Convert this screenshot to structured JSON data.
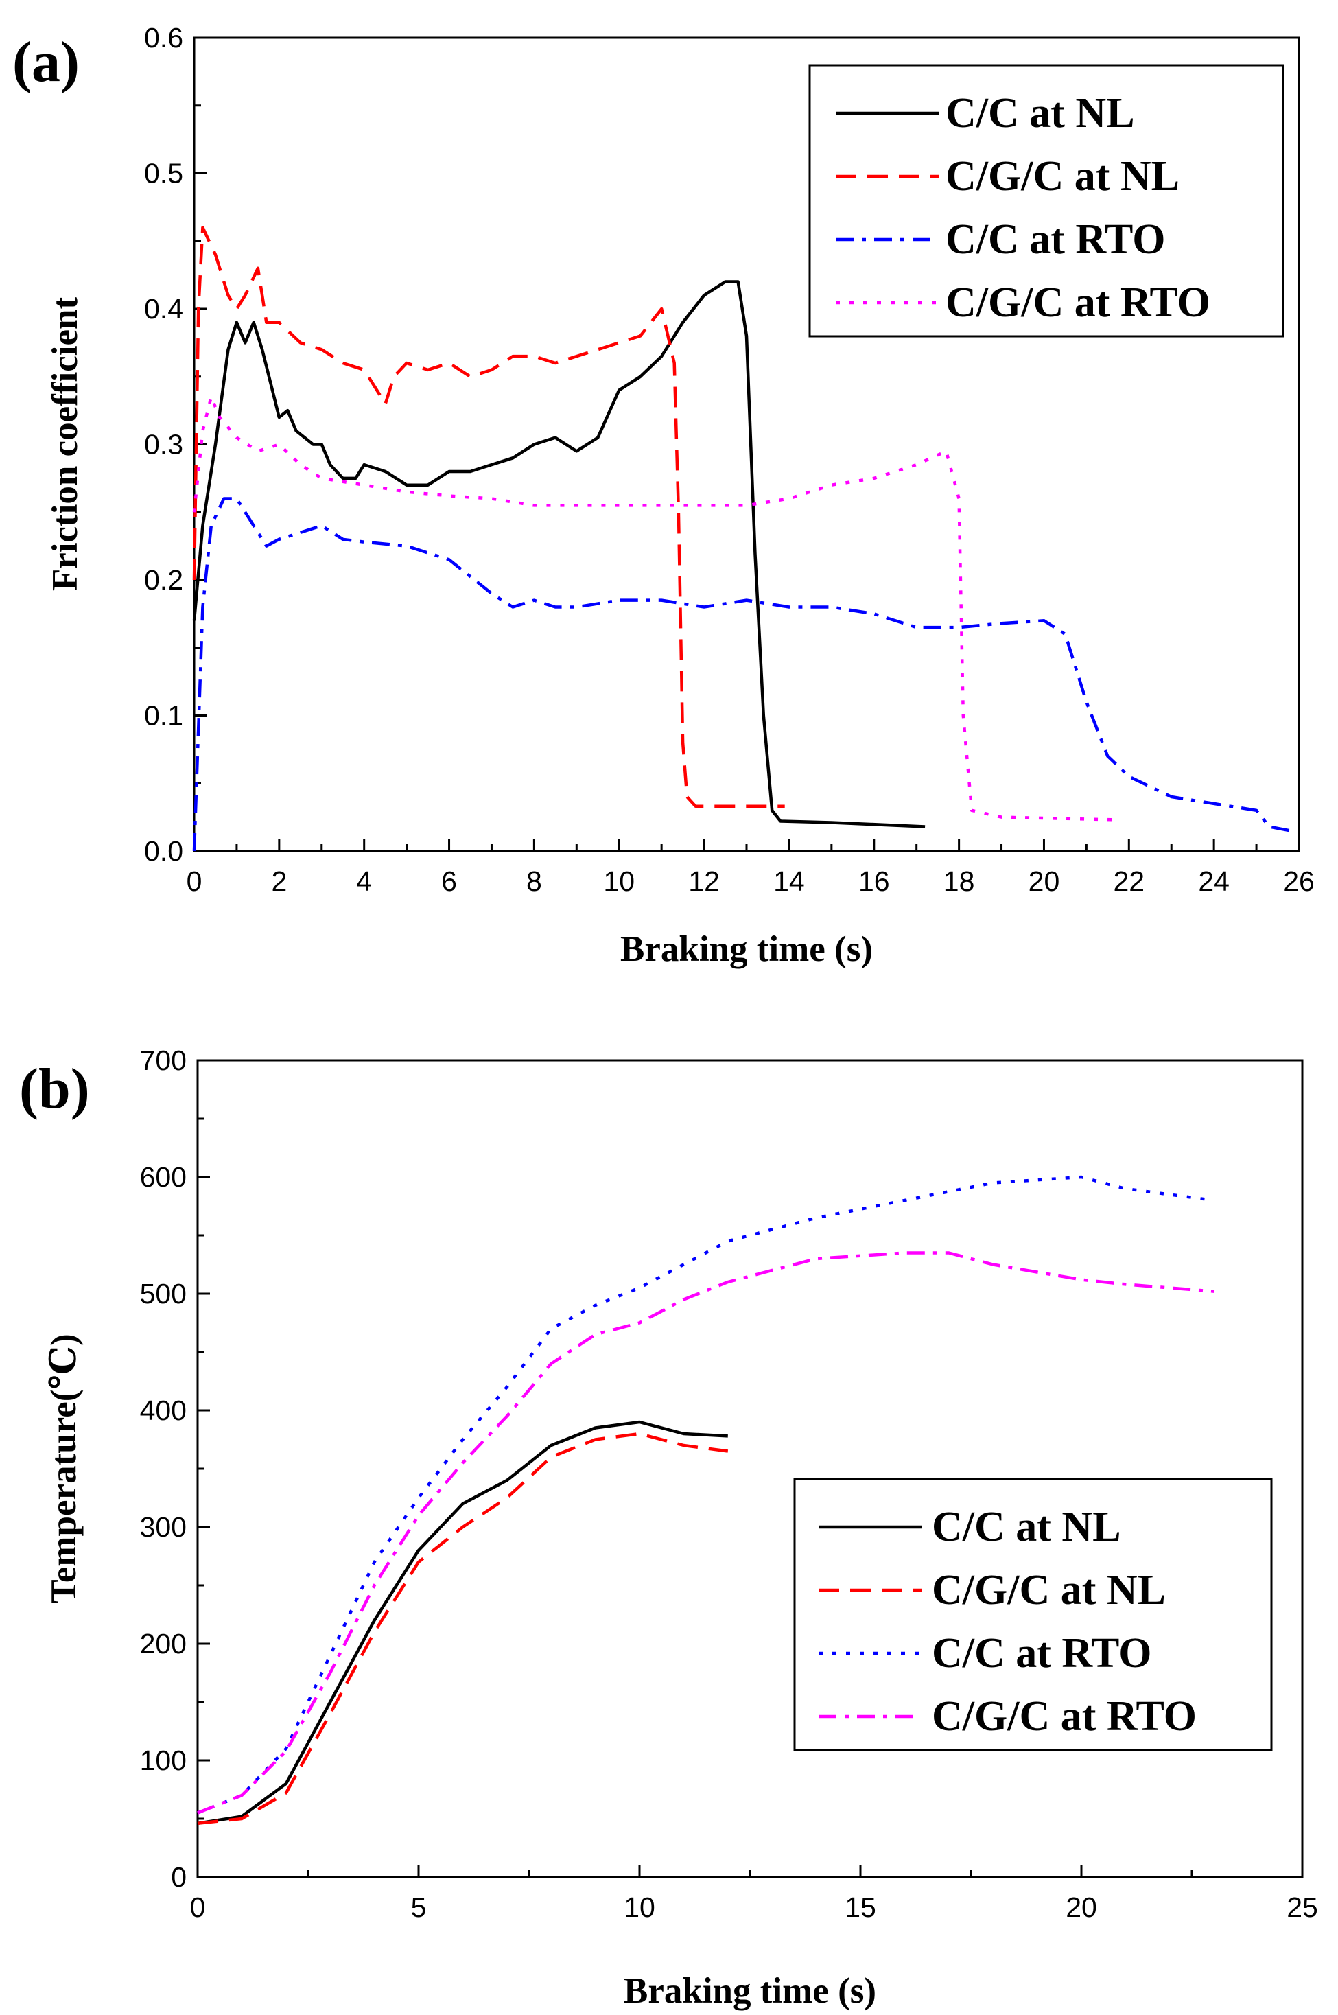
{
  "chart_data": [
    {
      "panel": "(a)",
      "type": "line",
      "title": "",
      "xlabel": "Braking time (s)",
      "ylabel": "Friction coefficient",
      "xlim": [
        0,
        26
      ],
      "ylim": [
        0,
        0.6
      ],
      "xticks": [
        0,
        2,
        4,
        6,
        8,
        10,
        12,
        14,
        16,
        18,
        20,
        22,
        24,
        26
      ],
      "yticks": [
        0.0,
        0.1,
        0.2,
        0.3,
        0.4,
        0.5,
        0.6
      ],
      "xtick_labels": [
        "0",
        "2",
        "4",
        "6",
        "8",
        "10",
        "12",
        "14",
        "16",
        "18",
        "20",
        "22",
        "24",
        "26"
      ],
      "ytick_labels": [
        "0.0",
        "0.1",
        "0.2",
        "0.3",
        "0.4",
        "0.5",
        "0.6"
      ],
      "legend_position": "top-right",
      "series": [
        {
          "name": "C/C at NL",
          "color": "#000000",
          "style": "solid",
          "points": [
            [
              0,
              0.17
            ],
            [
              0.2,
              0.24
            ],
            [
              0.5,
              0.3
            ],
            [
              0.8,
              0.37
            ],
            [
              1,
              0.39
            ],
            [
              1.2,
              0.375
            ],
            [
              1.4,
              0.39
            ],
            [
              1.6,
              0.37
            ],
            [
              1.8,
              0.345
            ],
            [
              2,
              0.32
            ],
            [
              2.2,
              0.325
            ],
            [
              2.4,
              0.31
            ],
            [
              2.6,
              0.305
            ],
            [
              2.8,
              0.3
            ],
            [
              3,
              0.3
            ],
            [
              3.2,
              0.285
            ],
            [
              3.5,
              0.275
            ],
            [
              3.8,
              0.275
            ],
            [
              4,
              0.285
            ],
            [
              4.5,
              0.28
            ],
            [
              5,
              0.27
            ],
            [
              5.5,
              0.27
            ],
            [
              6,
              0.28
            ],
            [
              6.5,
              0.28
            ],
            [
              7,
              0.285
            ],
            [
              7.5,
              0.29
            ],
            [
              8,
              0.3
            ],
            [
              8.5,
              0.305
            ],
            [
              9,
              0.295
            ],
            [
              9.5,
              0.305
            ],
            [
              10,
              0.34
            ],
            [
              10.5,
              0.35
            ],
            [
              11,
              0.365
            ],
            [
              11.5,
              0.39
            ],
            [
              12,
              0.41
            ],
            [
              12.5,
              0.42
            ],
            [
              12.8,
              0.42
            ],
            [
              13,
              0.38
            ],
            [
              13.2,
              0.22
            ],
            [
              13.4,
              0.1
            ],
            [
              13.6,
              0.03
            ],
            [
              13.8,
              0.022
            ],
            [
              15,
              0.021
            ],
            [
              17.2,
              0.018
            ]
          ]
        },
        {
          "name": "C/G/C at NL",
          "color": "#ff0000",
          "style": "dashed",
          "points": [
            [
              0,
              0.2
            ],
            [
              0.1,
              0.4
            ],
            [
              0.2,
              0.46
            ],
            [
              0.5,
              0.44
            ],
            [
              0.8,
              0.41
            ],
            [
              1,
              0.4
            ],
            [
              1.2,
              0.41
            ],
            [
              1.5,
              0.43
            ],
            [
              1.7,
              0.39
            ],
            [
              2,
              0.39
            ],
            [
              2.5,
              0.375
            ],
            [
              3,
              0.37
            ],
            [
              3.5,
              0.36
            ],
            [
              4,
              0.355
            ],
            [
              4.5,
              0.33
            ],
            [
              4.7,
              0.35
            ],
            [
              5,
              0.36
            ],
            [
              5.5,
              0.355
            ],
            [
              6,
              0.36
            ],
            [
              6.5,
              0.35
            ],
            [
              7,
              0.355
            ],
            [
              7.5,
              0.365
            ],
            [
              8,
              0.365
            ],
            [
              8.5,
              0.36
            ],
            [
              9,
              0.365
            ],
            [
              9.5,
              0.37
            ],
            [
              10,
              0.375
            ],
            [
              10.5,
              0.38
            ],
            [
              11,
              0.4
            ],
            [
              11.3,
              0.36
            ],
            [
              11.4,
              0.25
            ],
            [
              11.5,
              0.08
            ],
            [
              11.6,
              0.04
            ],
            [
              11.8,
              0.033
            ],
            [
              12.5,
              0.033
            ],
            [
              13.9,
              0.033
            ]
          ]
        },
        {
          "name": "C/C at RTO",
          "color": "#0000ff",
          "style": "dashdot",
          "points": [
            [
              0,
              0
            ],
            [
              0.2,
              0.18
            ],
            [
              0.4,
              0.24
            ],
            [
              0.7,
              0.26
            ],
            [
              1,
              0.26
            ],
            [
              1.3,
              0.245
            ],
            [
              1.7,
              0.225
            ],
            [
              2,
              0.23
            ],
            [
              2.5,
              0.235
            ],
            [
              3,
              0.24
            ],
            [
              3.5,
              0.23
            ],
            [
              4,
              0.228
            ],
            [
              5,
              0.225
            ],
            [
              6,
              0.215
            ],
            [
              7,
              0.19
            ],
            [
              7.5,
              0.18
            ],
            [
              8,
              0.185
            ],
            [
              8.5,
              0.18
            ],
            [
              9,
              0.18
            ],
            [
              10,
              0.185
            ],
            [
              11,
              0.185
            ],
            [
              12,
              0.18
            ],
            [
              13,
              0.185
            ],
            [
              14,
              0.18
            ],
            [
              15,
              0.18
            ],
            [
              16,
              0.175
            ],
            [
              17,
              0.165
            ],
            [
              18,
              0.165
            ],
            [
              19,
              0.168
            ],
            [
              20,
              0.17
            ],
            [
              20.5,
              0.16
            ],
            [
              21,
              0.11
            ],
            [
              21.5,
              0.07
            ],
            [
              22,
              0.055
            ],
            [
              23,
              0.04
            ],
            [
              24,
              0.035
            ],
            [
              25,
              0.03
            ],
            [
              25.3,
              0.018
            ],
            [
              25.8,
              0.015
            ]
          ]
        },
        {
          "name": "C/G/C at RTO",
          "color": "#ff00ff",
          "style": "dotted",
          "points": [
            [
              0,
              0.25
            ],
            [
              0.2,
              0.31
            ],
            [
              0.4,
              0.335
            ],
            [
              0.6,
              0.32
            ],
            [
              1,
              0.305
            ],
            [
              1.5,
              0.295
            ],
            [
              2,
              0.3
            ],
            [
              2.5,
              0.285
            ],
            [
              3,
              0.275
            ],
            [
              4,
              0.27
            ],
            [
              5,
              0.265
            ],
            [
              6,
              0.262
            ],
            [
              7,
              0.26
            ],
            [
              8,
              0.255
            ],
            [
              9,
              0.255
            ],
            [
              10,
              0.255
            ],
            [
              11,
              0.255
            ],
            [
              12,
              0.255
            ],
            [
              13,
              0.255
            ],
            [
              14,
              0.26
            ],
            [
              15,
              0.27
            ],
            [
              16,
              0.275
            ],
            [
              17,
              0.285
            ],
            [
              17.7,
              0.295
            ],
            [
              18,
              0.26
            ],
            [
              18.1,
              0.1
            ],
            [
              18.3,
              0.03
            ],
            [
              19,
              0.025
            ],
            [
              21.8,
              0.023
            ]
          ]
        }
      ]
    },
    {
      "panel": "(b)",
      "type": "line",
      "title": "",
      "xlabel": "Braking time (s)",
      "ylabel": "Temperature(℃)",
      "xlim": [
        0,
        25
      ],
      "ylim": [
        0,
        700
      ],
      "xticks": [
        0,
        5,
        10,
        15,
        20,
        25
      ],
      "yticks": [
        0,
        100,
        200,
        300,
        400,
        500,
        600,
        700
      ],
      "xtick_labels": [
        "0",
        "5",
        "10",
        "15",
        "20",
        "25"
      ],
      "ytick_labels": [
        "0",
        "100",
        "200",
        "300",
        "400",
        "500",
        "600",
        "700"
      ],
      "legend_position": "bottom-right",
      "series": [
        {
          "name": "C/C at NL",
          "color": "#000000",
          "style": "solid",
          "points": [
            [
              0,
              46
            ],
            [
              1,
              52
            ],
            [
              2,
              80
            ],
            [
              3,
              150
            ],
            [
              4,
              220
            ],
            [
              5,
              280
            ],
            [
              6,
              320
            ],
            [
              7,
              340
            ],
            [
              8,
              370
            ],
            [
              9,
              385
            ],
            [
              10,
              390
            ],
            [
              11,
              380
            ],
            [
              12,
              378
            ]
          ]
        },
        {
          "name": "C/G/C at NL",
          "color": "#ff0000",
          "style": "dashed",
          "points": [
            [
              0,
              46
            ],
            [
              1,
              50
            ],
            [
              2,
              72
            ],
            [
              3,
              140
            ],
            [
              4,
              210
            ],
            [
              5,
              270
            ],
            [
              6,
              300
            ],
            [
              7,
              325
            ],
            [
              8,
              360
            ],
            [
              9,
              375
            ],
            [
              10,
              380
            ],
            [
              11,
              370
            ],
            [
              12,
              365
            ]
          ]
        },
        {
          "name": "C/C at RTO",
          "color": "#0000ff",
          "style": "dotted",
          "points": [
            [
              0,
              55
            ],
            [
              1,
              70
            ],
            [
              2,
              110
            ],
            [
              3,
              190
            ],
            [
              4,
              270
            ],
            [
              5,
              325
            ],
            [
              6,
              375
            ],
            [
              7,
              420
            ],
            [
              8,
              470
            ],
            [
              9,
              490
            ],
            [
              10,
              505
            ],
            [
              11,
              525
            ],
            [
              12,
              545
            ],
            [
              14,
              565
            ],
            [
              16,
              580
            ],
            [
              18,
              595
            ],
            [
              20,
              600
            ],
            [
              21,
              590
            ],
            [
              23,
              580
            ]
          ]
        },
        {
          "name": "C/G/C at RTO",
          "color": "#ff00ff",
          "style": "dashdot",
          "points": [
            [
              0,
              55
            ],
            [
              1,
              70
            ],
            [
              2,
              108
            ],
            [
              3,
              175
            ],
            [
              4,
              250
            ],
            [
              5,
              310
            ],
            [
              6,
              355
            ],
            [
              7,
              395
            ],
            [
              8,
              440
            ],
            [
              9,
              465
            ],
            [
              10,
              475
            ],
            [
              11,
              495
            ],
            [
              12,
              510
            ],
            [
              14,
              530
            ],
            [
              16,
              535
            ],
            [
              17,
              535
            ],
            [
              18,
              525
            ],
            [
              20,
              512
            ],
            [
              21,
              508
            ],
            [
              23,
              502
            ]
          ]
        }
      ]
    }
  ]
}
